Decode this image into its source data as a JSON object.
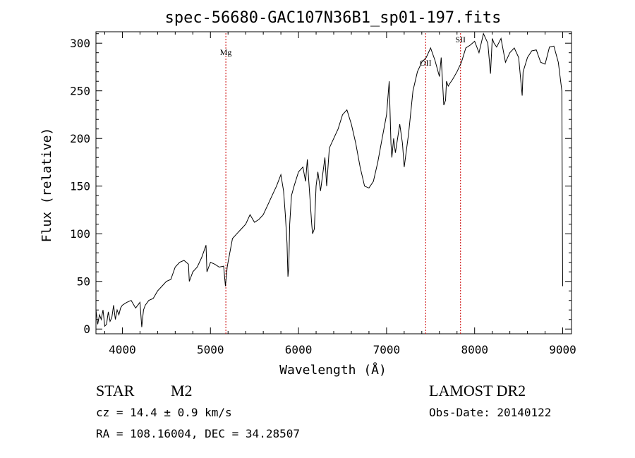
{
  "chart_data": {
    "type": "line",
    "title": "spec-56680-GAC107N36B1_sp01-197.fits",
    "xlabel": "Wavelength (Å)",
    "ylabel": "Flux (relative)",
    "xlim": [
      3700,
      9100
    ],
    "ylim": [
      -5,
      312
    ],
    "x_ticks": [
      4000,
      5000,
      6000,
      7000,
      8000,
      9000
    ],
    "y_ticks": [
      0,
      50,
      100,
      150,
      200,
      250,
      300
    ],
    "grid": false,
    "line_color": "#000000",
    "marker_color": "#cc0000",
    "series": [
      {
        "x": [
          3700,
          3720,
          3740,
          3760,
          3780,
          3800,
          3820,
          3840,
          3860,
          3880,
          3900,
          3920,
          3940,
          3960,
          3980,
          4000,
          4050,
          4100,
          4150,
          4200,
          4220,
          4240,
          4260,
          4300,
          4350,
          4400,
          4450,
          4500,
          4550,
          4600,
          4650,
          4700,
          4750,
          4760,
          4780,
          4800,
          4850,
          4900,
          4950,
          4960,
          4980,
          5000,
          5050,
          5100,
          5150,
          5170,
          5190,
          5200,
          5250,
          5300,
          5350,
          5400,
          5450,
          5500,
          5550,
          5600,
          5650,
          5700,
          5750,
          5800,
          5830,
          5850,
          5870,
          5880,
          5890,
          5900,
          5920,
          5950,
          6000,
          6050,
          6080,
          6100,
          6150,
          6160,
          6180,
          6200,
          6220,
          6250,
          6300,
          6320,
          6350,
          6400,
          6450,
          6500,
          6550,
          6600,
          6650,
          6700,
          6750,
          6800,
          6850,
          6900,
          6950,
          7000,
          7030,
          7050,
          7060,
          7080,
          7100,
          7150,
          7180,
          7200,
          7250,
          7300,
          7350,
          7400,
          7450,
          7500,
          7550,
          7600,
          7620,
          7650,
          7670,
          7680,
          7700,
          7720,
          7750,
          7800,
          7850,
          7900,
          7950,
          8000,
          8050,
          8100,
          8150,
          8180,
          8200,
          8220,
          8250,
          8300,
          8350,
          8400,
          8450,
          8500,
          8540,
          8550,
          8600,
          8650,
          8700,
          8750,
          8800,
          8850,
          8900,
          8950,
          8990,
          9000
        ],
        "values": [
          20,
          5,
          15,
          10,
          20,
          3,
          5,
          18,
          8,
          12,
          25,
          10,
          20,
          15,
          22,
          25,
          28,
          30,
          22,
          28,
          2,
          20,
          25,
          30,
          32,
          40,
          45,
          50,
          52,
          65,
          70,
          72,
          68,
          50,
          55,
          60,
          65,
          75,
          88,
          60,
          65,
          70,
          68,
          65,
          66,
          45,
          65,
          70,
          95,
          100,
          105,
          110,
          120,
          112,
          115,
          120,
          130,
          140,
          150,
          162,
          145,
          120,
          90,
          55,
          65,
          110,
          140,
          150,
          165,
          170,
          155,
          178,
          110,
          100,
          105,
          150,
          165,
          145,
          180,
          150,
          190,
          200,
          210,
          225,
          230,
          215,
          195,
          170,
          150,
          148,
          155,
          175,
          200,
          225,
          260,
          195,
          180,
          200,
          185,
          215,
          195,
          170,
          205,
          250,
          270,
          280,
          285,
          295,
          282,
          265,
          285,
          235,
          240,
          260,
          255,
          258,
          262,
          270,
          280,
          295,
          298,
          302,
          290,
          310,
          300,
          268,
          305,
          300,
          296,
          305,
          280,
          290,
          295,
          285,
          245,
          270,
          285,
          292,
          293,
          280,
          278,
          296,
          297,
          280,
          250,
          45
        ]
      }
    ],
    "annotations": [
      {
        "label": "Mg",
        "x": 5175
      },
      {
        "label": "OII",
        "x": 7444
      },
      {
        "label": "SII",
        "x": 7840
      }
    ]
  },
  "info": {
    "obj_class": "STAR",
    "subclass": "M2",
    "release": "LAMOST DR2",
    "cz": "cz = 14.4 ± 0.9 km/s",
    "obs_date": "Obs-Date: 20140122",
    "coords": "RA = 108.16004, DEC =  34.28507"
  }
}
